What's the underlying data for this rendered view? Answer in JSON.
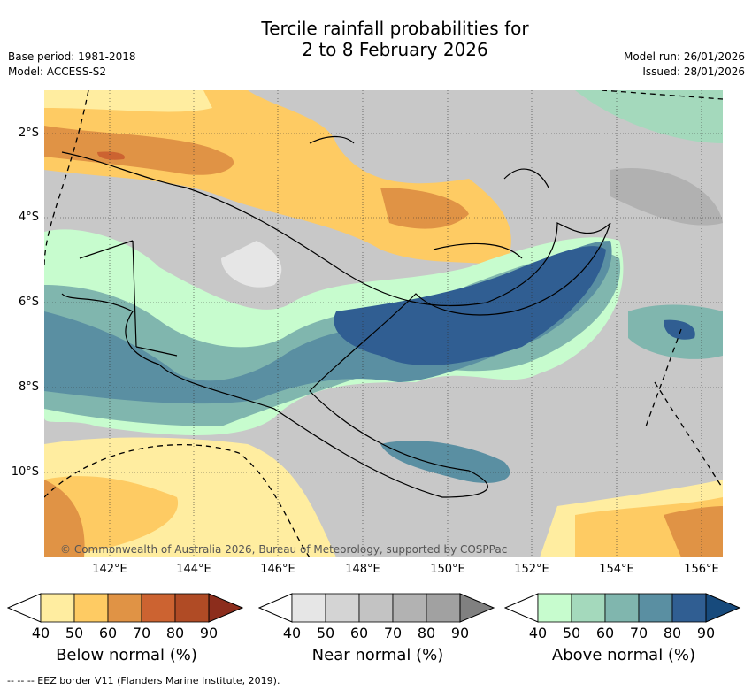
{
  "title_line1": "Tercile rainfall probabilities for",
  "title_line2": "2 to 8 February 2026",
  "left_meta": {
    "base_period": "Base period: 1981-2018",
    "model": "Model: ACCESS-S2"
  },
  "right_meta": {
    "model_run": "Model run: 26/01/2026",
    "issued": "Issued: 28/01/2026"
  },
  "map": {
    "lat_labels": [
      "2°S",
      "4°S",
      "6°S",
      "8°S",
      "10°S"
    ],
    "lon_labels": [
      "142°E",
      "144°E",
      "146°E",
      "148°E",
      "150°E",
      "152°E",
      "154°E",
      "156°E"
    ],
    "credit": "© Commonwealth of Australia 2026, Bureau of Meteorology, supported by COSPPac"
  },
  "colorbars": [
    {
      "title": "Below normal (%)",
      "ticks": [
        "40",
        "50",
        "60",
        "70",
        "80",
        "90"
      ],
      "colors": [
        "#ffeda0",
        "#fecb63",
        "#e09345",
        "#cc6331",
        "#b04b25",
        "#8c2d1c"
      ]
    },
    {
      "title": "Near normal (%)",
      "ticks": [
        "40",
        "50",
        "60",
        "70",
        "80",
        "90"
      ],
      "colors": [
        "#e6e6e6",
        "#d4d4d4",
        "#c3c3c3",
        "#b2b2b2",
        "#a1a1a1",
        "#808080"
      ]
    },
    {
      "title": "Above normal (%)",
      "ticks": [
        "40",
        "50",
        "60",
        "70",
        "80",
        "90"
      ],
      "colors": [
        "#c7fcce",
        "#a4d9bc",
        "#80b6ae",
        "#5a8fa2",
        "#305e92",
        "#174a7c"
      ]
    }
  ],
  "footnote": "--  --  -- EEZ border V11 (Flanders Marine Institute, 2019)."
}
